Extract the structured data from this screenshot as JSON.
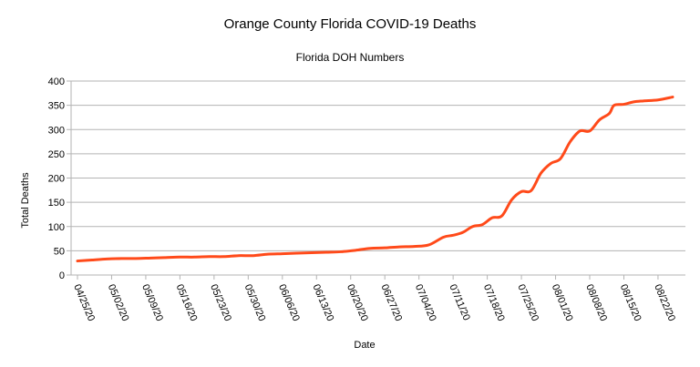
{
  "chart_data": {
    "type": "line",
    "title": "Orange County Florida COVID-19 Deaths",
    "subtitle": "Florida DOH Numbers",
    "xlabel": "Date",
    "ylabel": "Total Deaths",
    "ylim": [
      0,
      400
    ],
    "yticks": [
      0,
      50,
      100,
      150,
      200,
      250,
      300,
      350,
      400
    ],
    "grid": true,
    "legend": "none",
    "x_tick_labels": [
      "04/25/20",
      "05/02/20",
      "05/09/20",
      "05/16/20",
      "05/23/20",
      "05/30/20",
      "06/06/20",
      "06/13/20",
      "06/20/20",
      "06/27/20",
      "07/04/20",
      "07/11/20",
      "07/18/20",
      "07/25/20",
      "08/01/20",
      "08/08/20",
      "08/15/20",
      "08/22/20"
    ],
    "series": [
      {
        "color": "#ff4a1a",
        "points": [
          [
            "04/25/20",
            29
          ],
          [
            "04/28/20",
            31
          ],
          [
            "05/01/20",
            33
          ],
          [
            "05/04/20",
            34
          ],
          [
            "05/07/20",
            34
          ],
          [
            "05/10/20",
            35
          ],
          [
            "05/13/20",
            36
          ],
          [
            "05/16/20",
            37
          ],
          [
            "05/19/20",
            37
          ],
          [
            "05/22/20",
            38
          ],
          [
            "05/25/20",
            38
          ],
          [
            "05/28/20",
            40
          ],
          [
            "05/31/20",
            40
          ],
          [
            "06/03/20",
            43
          ],
          [
            "06/06/20",
            44
          ],
          [
            "06/09/20",
            45
          ],
          [
            "06/12/20",
            46
          ],
          [
            "06/15/20",
            47
          ],
          [
            "06/18/20",
            48
          ],
          [
            "06/21/20",
            51
          ],
          [
            "06/24/20",
            55
          ],
          [
            "06/27/20",
            56
          ],
          [
            "06/30/20",
            58
          ],
          [
            "07/03/20",
            59
          ],
          [
            "07/06/20",
            62
          ],
          [
            "07/09/20",
            78
          ],
          [
            "07/11/20",
            82
          ],
          [
            "07/13/20",
            88
          ],
          [
            "07/15/20",
            100
          ],
          [
            "07/17/20",
            104
          ],
          [
            "07/19/20",
            118
          ],
          [
            "07/21/20",
            122
          ],
          [
            "07/23/20",
            155
          ],
          [
            "07/25/20",
            172
          ],
          [
            "07/27/20",
            174
          ],
          [
            "07/29/20",
            210
          ],
          [
            "07/31/20",
            230
          ],
          [
            "08/02/20",
            240
          ],
          [
            "08/04/20",
            275
          ],
          [
            "08/06/20",
            297
          ],
          [
            "08/08/20",
            297
          ],
          [
            "08/10/20",
            320
          ],
          [
            "08/12/20",
            333
          ],
          [
            "08/13/20",
            350
          ],
          [
            "08/15/20",
            352
          ],
          [
            "08/17/20",
            357
          ],
          [
            "08/19/20",
            359
          ],
          [
            "08/22/20",
            361
          ],
          [
            "08/25/20",
            367
          ]
        ]
      }
    ]
  }
}
